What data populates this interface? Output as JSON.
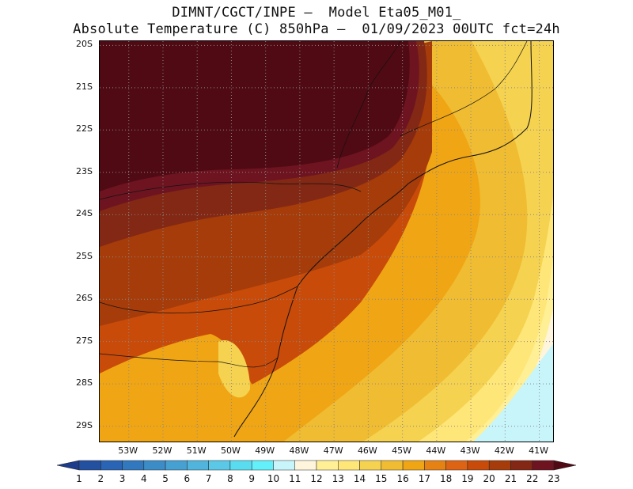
{
  "header": {
    "title_line1": "DIMNT/CGCT/INPE –  Model Eta05_M01_",
    "title_line2": "Absolute Temperature (C) 850hPa –  01/09/2023 00UTC fct=24h"
  },
  "map": {
    "latitude_labels": [
      "20S",
      "21S",
      "22S",
      "23S",
      "24S",
      "25S",
      "26S",
      "27S",
      "28S",
      "29S"
    ],
    "longitude_labels": [
      "53W",
      "52W",
      "51W",
      "50W",
      "49W",
      "48W",
      "47W",
      "46W",
      "45W",
      "44W",
      "43W",
      "42W",
      "41W"
    ],
    "lat_range": [
      -29.4,
      -19.9
    ],
    "lon_range": [
      -53.85,
      -40.55
    ],
    "grid_lines": "dotted"
  },
  "colorbar": {
    "levels": [
      "1",
      "2",
      "3",
      "4",
      "5",
      "6",
      "7",
      "8",
      "9",
      "10",
      "11",
      "12",
      "13",
      "14",
      "15",
      "16",
      "17",
      "18",
      "19",
      "20",
      "21",
      "22",
      "23"
    ],
    "colors": [
      "#1e3c8c",
      "#2450a0",
      "#2a64b4",
      "#3278be",
      "#3c8cc8",
      "#46a0d2",
      "#50b4dc",
      "#5ac8e6",
      "#5adcf0",
      "#64f0fa",
      "#c8f5fa",
      "#fff5dc",
      "#fff096",
      "#ffe678",
      "#f5d250",
      "#f0bc32",
      "#f0a514",
      "#e68214",
      "#dc6414",
      "#c84b0a",
      "#a53c0a",
      "#822814",
      "#6e1420",
      "#500a14"
    ]
  }
}
